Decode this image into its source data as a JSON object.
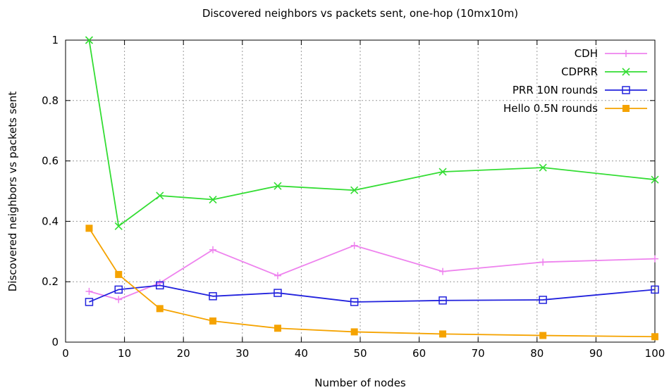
{
  "chart_data": {
    "type": "line",
    "title": "Discovered neighbors vs packets sent, one-hop (10mx10m)",
    "xlabel": "Number of nodes",
    "ylabel": "Discovered neighbors vs packets sent",
    "xlim": [
      0,
      100
    ],
    "ylim": [
      0,
      1
    ],
    "xticks": [
      "0",
      "10",
      "20",
      "30",
      "40",
      "50",
      "60",
      "70",
      "80",
      "90",
      "100"
    ],
    "yticks": [
      "0",
      "0.2",
      "0.4",
      "0.6",
      "0.8",
      "1"
    ],
    "grid": true,
    "legend_position": "top-right",
    "series": [
      {
        "name": "CDH",
        "color": "#ee82ee",
        "marker": "plus",
        "x": [
          4,
          9,
          16,
          25,
          36,
          49,
          64,
          81,
          100
        ],
        "y": [
          0.168,
          0.141,
          0.196,
          0.306,
          0.22,
          0.32,
          0.234,
          0.265,
          0.276
        ]
      },
      {
        "name": "CDPRR",
        "color": "#33dd33",
        "marker": "cross",
        "x": [
          4,
          9,
          16,
          25,
          36,
          49,
          64,
          81,
          100
        ],
        "y": [
          1.0,
          0.384,
          0.485,
          0.472,
          0.517,
          0.503,
          0.564,
          0.578,
          0.538
        ]
      },
      {
        "name": "PRR 10N rounds",
        "color": "#2222dd",
        "marker": "square-open",
        "x": [
          4,
          9,
          16,
          25,
          36,
          49,
          64,
          81,
          100
        ],
        "y": [
          0.133,
          0.174,
          0.188,
          0.152,
          0.163,
          0.133,
          0.138,
          0.14,
          0.174
        ]
      },
      {
        "name": "Hello 0.5N rounds",
        "color": "#f5a300",
        "marker": "square-filled",
        "x": [
          4,
          9,
          16,
          25,
          36,
          49,
          64,
          81,
          100
        ],
        "y": [
          0.377,
          0.224,
          0.111,
          0.07,
          0.046,
          0.034,
          0.027,
          0.022,
          0.018
        ]
      }
    ]
  }
}
